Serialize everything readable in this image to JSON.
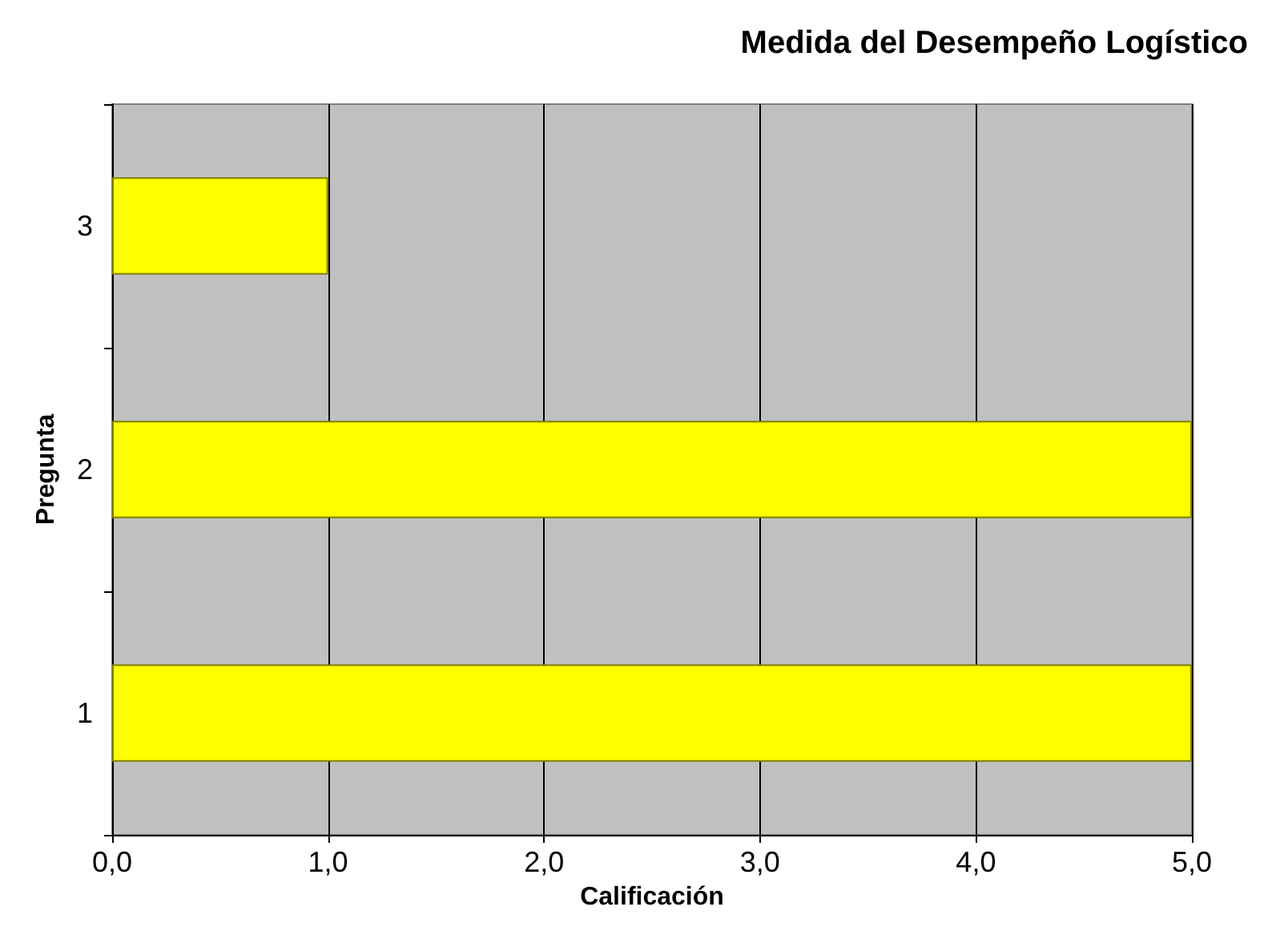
{
  "chart_data": {
    "type": "bar",
    "orientation": "horizontal",
    "title": "Medida del Desempeño Logístico",
    "xlabel": "Calificación",
    "ylabel": "Pregunta",
    "categories": [
      "3",
      "2",
      "1"
    ],
    "values": [
      1.0,
      5.0,
      5.0
    ],
    "color": "#ffff00",
    "xlim": [
      0,
      5
    ],
    "xticks": [
      {
        "value": 0,
        "label": "0,0"
      },
      {
        "value": 1,
        "label": "1,0"
      },
      {
        "value": 2,
        "label": "2,0"
      },
      {
        "value": 3,
        "label": "3,0"
      },
      {
        "value": 4,
        "label": "4,0"
      },
      {
        "value": 5,
        "label": "5,0"
      }
    ],
    "grid": "x"
  }
}
